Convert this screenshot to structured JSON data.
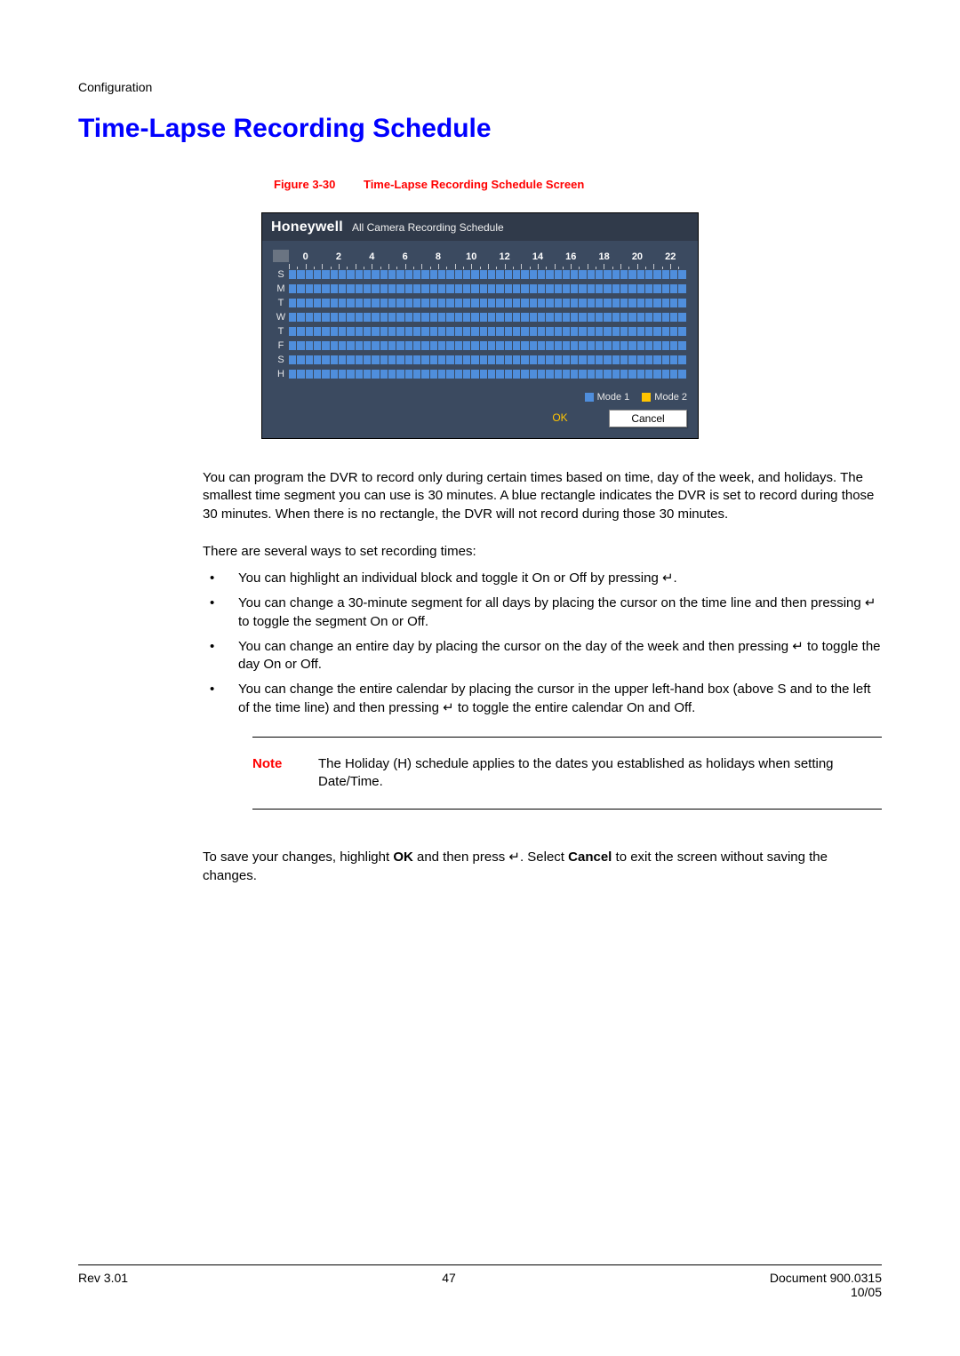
{
  "section_header": "Configuration",
  "title": "Time-Lapse Recording Schedule",
  "figure": {
    "label": "Figure 3-30",
    "caption": "Time-Lapse Recording Schedule Screen"
  },
  "screenshot": {
    "brand": "Honeywell",
    "subtitle": "All Camera Recording Schedule",
    "hours_labels": [
      "0",
      "2",
      "4",
      "6",
      "8",
      "10",
      "12",
      "14",
      "16",
      "18",
      "20",
      "22"
    ],
    "segments_per_row": 48,
    "days": [
      "S",
      "M",
      "T",
      "W",
      "T",
      "F",
      "S",
      "H"
    ],
    "colors": {
      "panel_dark": "#303a4a",
      "panel": "#3b4a60",
      "cell": "#4f8edc",
      "mode1": "#4f8edc",
      "mode2": "#ffc400",
      "ok_text": "#ffc400",
      "text_light": "#e8e8e8",
      "white": "#ffffff",
      "cancel_bg": "#ffffff"
    },
    "legend": [
      {
        "label": "Mode 1",
        "color": "#4f8edc"
      },
      {
        "label": "Mode 2",
        "color": "#ffc400"
      }
    ],
    "buttons": {
      "ok": "OK",
      "cancel": "Cancel"
    }
  },
  "para1": "You can program the DVR to record only during certain times based on time, day of the week, and holidays. The smallest time segment you can use is 30 minutes. A blue rectangle indicates the DVR is set to record during those 30 minutes. When there is no rectangle, the DVR will not record during those 30 minutes.",
  "para2": "There are several ways to set recording times:",
  "bullets": [
    "You can highlight an individual block and toggle it On or Off by pressing ↵.",
    "You can change a 30-minute segment for all days by placing the cursor on the time line and then pressing ↵ to toggle the segment On or Off.",
    "You can change an entire day by placing the cursor on the day of the week and then pressing ↵ to toggle the day On or Off.",
    "You can change the entire calendar by placing the cursor in the upper left-hand box (above S and to the left of the time line) and then pressing ↵ to toggle the entire calendar On and Off."
  ],
  "note": {
    "label": "Note",
    "text": "The Holiday (H) schedule applies to the dates you established as holidays when setting Date/Time."
  },
  "para3_pre": "To save your changes, highlight ",
  "para3_ok": "OK",
  "para3_mid": " and then press ↵. Select ",
  "para3_cancel": "Cancel",
  "para3_post": " to exit the screen without saving the changes.",
  "footer": {
    "rev": "Rev 3.01",
    "page": "47",
    "doc": "Document 900.0315",
    "date": "10/05"
  },
  "colors": {
    "accent_blue": "#0000ff",
    "accent_red": "#ff0000"
  }
}
